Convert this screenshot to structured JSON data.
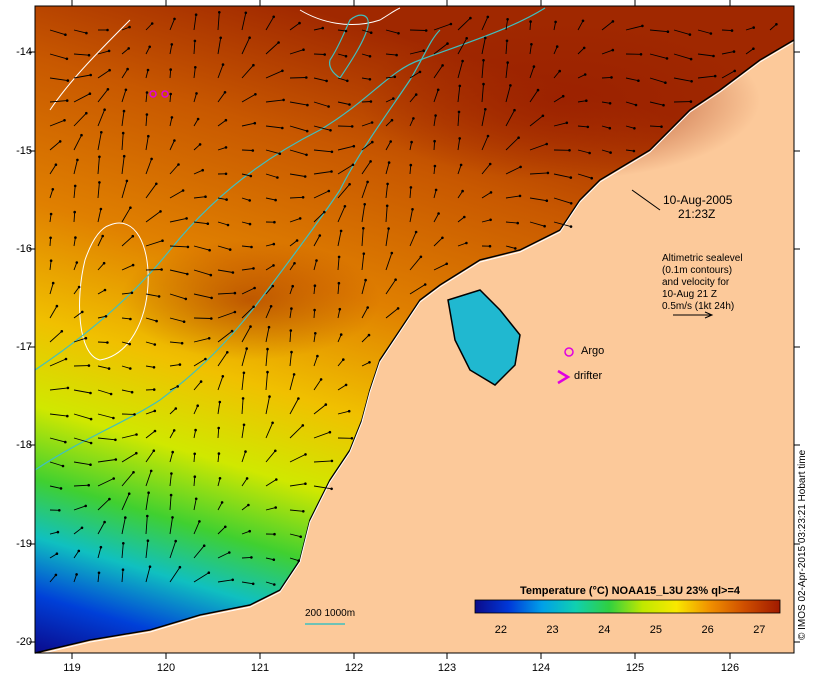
{
  "colors": {
    "land": "#fcc99a",
    "ocean_hot": "#9a2000",
    "ocean_warm": "#d26b00",
    "coastline": "#000000",
    "sealevel_contour": "#ffffff",
    "bathymetry_contour": "#3fc0c0",
    "argo_marker": "#e000e0",
    "drifter_marker": "#e000e0"
  },
  "map": {
    "lon_range": [
      118.6,
      126.7
    ],
    "lat_range": [
      -20.1,
      -13.6
    ],
    "lon_ticks": [
      119,
      120,
      121,
      122,
      123,
      124,
      125,
      126
    ],
    "lat_ticks": [
      -14,
      -15,
      -16,
      -17,
      -18,
      -19,
      -20
    ]
  },
  "annotations": {
    "date_line1": "10-Aug-2005",
    "date_line2": "21:23Z",
    "sealevel_line1": "Altimetric sealevel",
    "sealevel_line2": "(0.1m contours)",
    "sealevel_line3": "and velocity for",
    "sealevel_line4": "10-Aug 21 Z",
    "sealevel_line5": "0.5m/s (1kt 24h)",
    "argo_label": "Argo",
    "drifter_label": "drifter",
    "bathy_label": "200  1000m"
  },
  "colorbar": {
    "title": "Temperature (°C) NOAA15_L3U 23% ql>=4",
    "min": 21.5,
    "max": 27.4,
    "ticks": [
      22,
      23,
      24,
      25,
      26,
      27
    ],
    "stops": [
      "#0b0b8a",
      "#0038d8",
      "#00a0e8",
      "#10d0b0",
      "#30d040",
      "#c0e800",
      "#f8e800",
      "#f09000",
      "#d05000",
      "#a01a00"
    ]
  },
  "credit": "© IMOS 02-Apr-2015 03:23:21 Hobart time"
}
